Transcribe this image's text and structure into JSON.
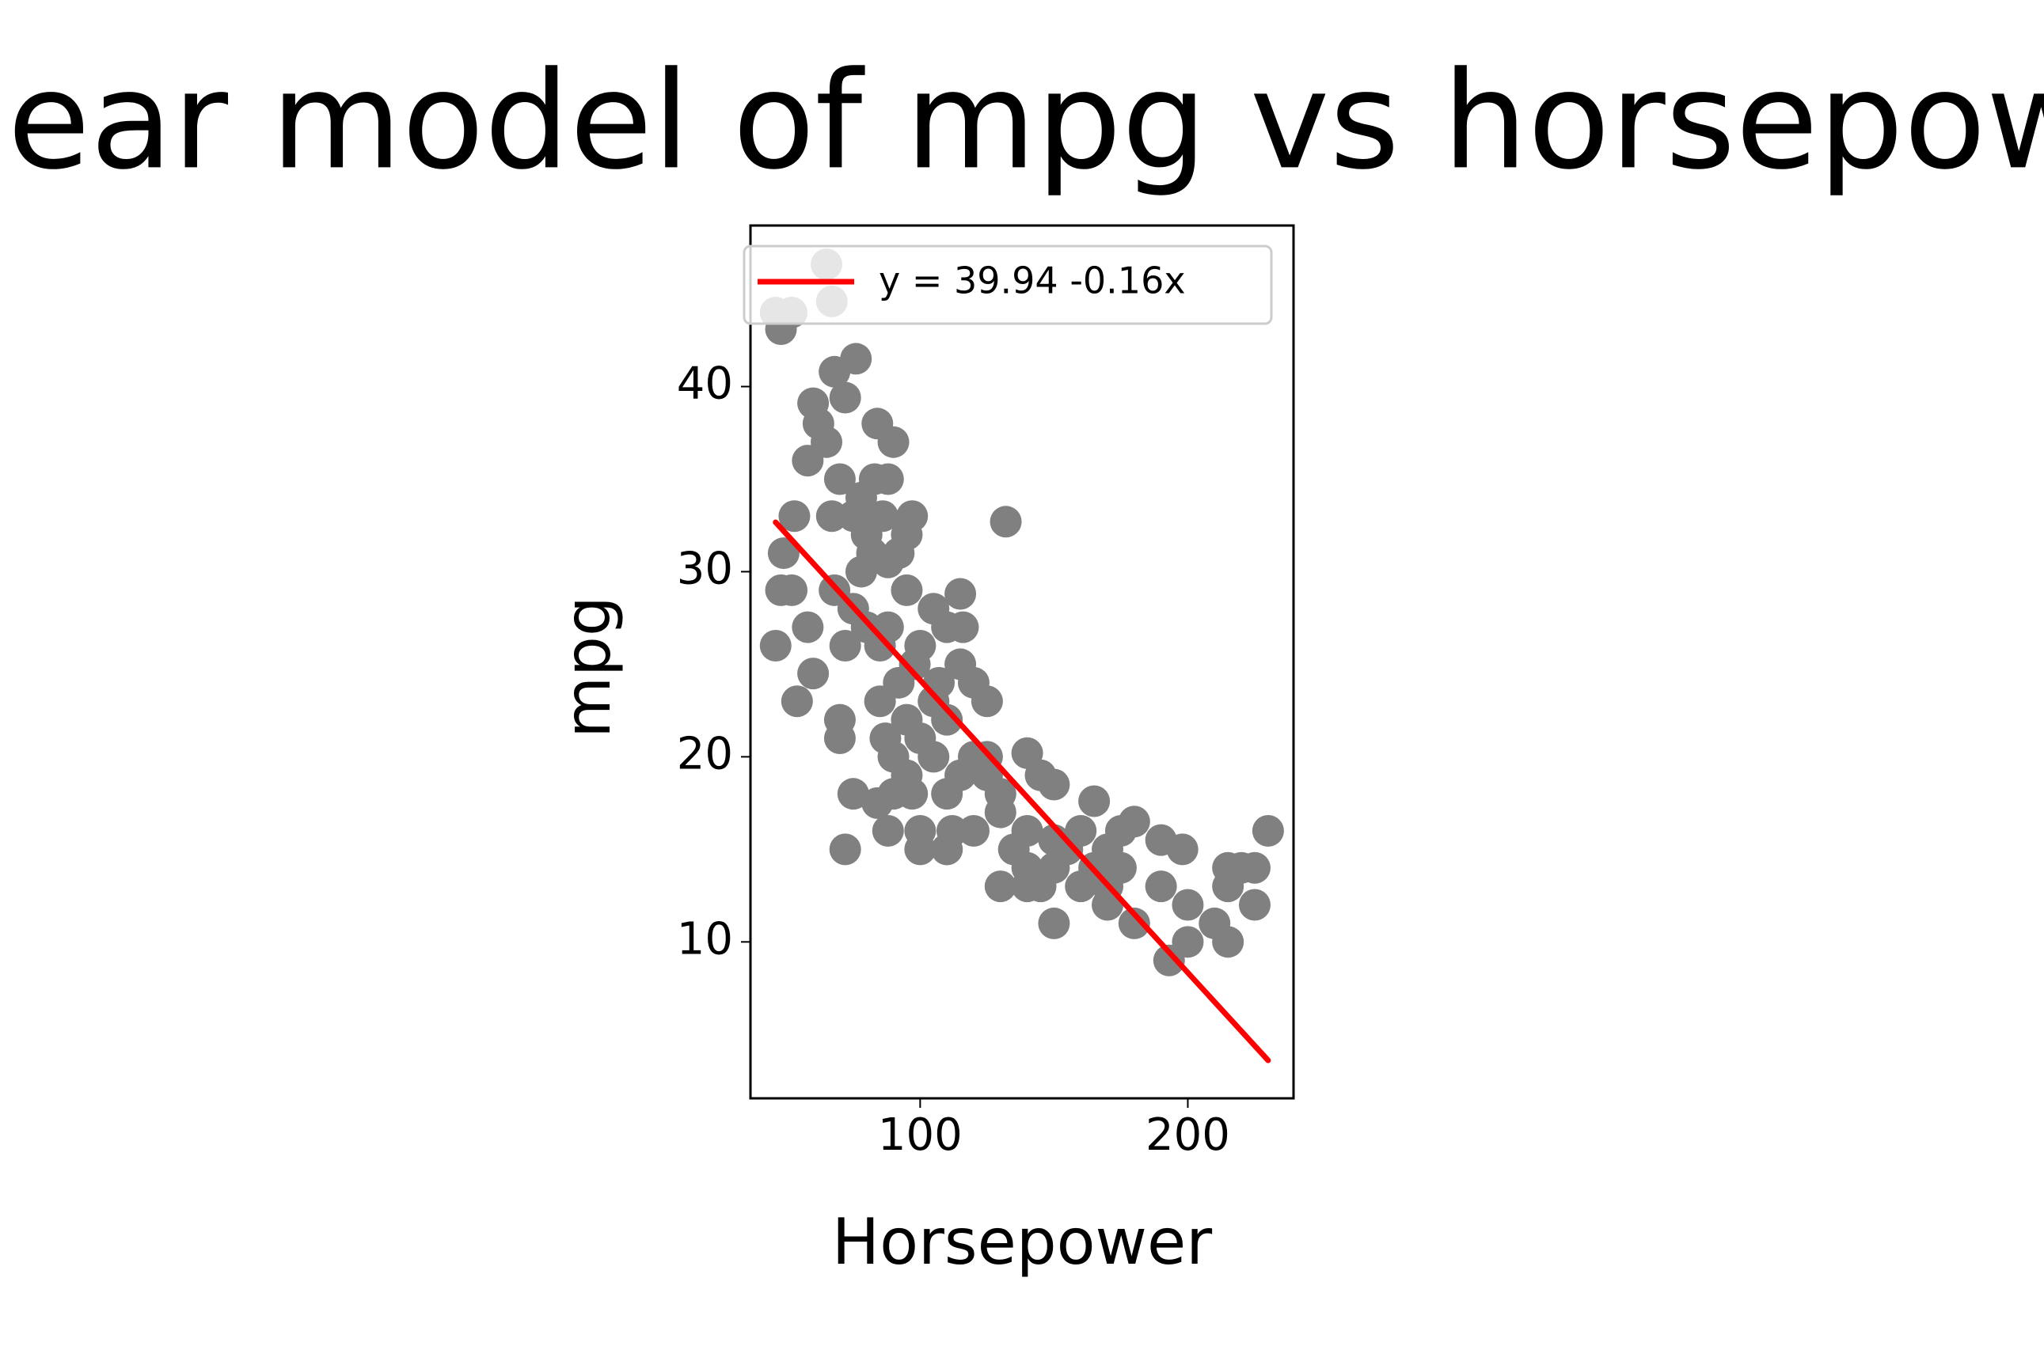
{
  "chart_data": {
    "type": "scatter",
    "title": "Linear model of mpg vs horsepower",
    "x_label": "Horsepower",
    "y_label": "mpg",
    "color": "#808080",
    "x": [
      46,
      48,
      46,
      52,
      65,
      67,
      48,
      52,
      53,
      49,
      54,
      58,
      60,
      58,
      62,
      60,
      68,
      72,
      76,
      65,
      70,
      75,
      84,
      90,
      95,
      97,
      88,
      80,
      78,
      75,
      72,
      70,
      70,
      75,
      84,
      72,
      100,
      110,
      100,
      90,
      95,
      100,
      105,
      115,
      116,
      115,
      120,
      125,
      110,
      105,
      110,
      120,
      115,
      125,
      130,
      135,
      130,
      140,
      140,
      145,
      150,
      140,
      150,
      145,
      150,
      155,
      160,
      165,
      170,
      175,
      170,
      175,
      180,
      180,
      190,
      198,
      190,
      193,
      200,
      200,
      210,
      215,
      215,
      220,
      225,
      225,
      215,
      230,
      132,
      88,
      92,
      95,
      98,
      85,
      82,
      78,
      67,
      68,
      87,
      90,
      105,
      112,
      88,
      97,
      100,
      107,
      110,
      120,
      125,
      130,
      110,
      140,
      150,
      160,
      165,
      170,
      85,
      95,
      80,
      83,
      86,
      92,
      88
    ],
    "y": [
      26,
      43.1,
      44,
      44,
      46.6,
      44.6,
      29,
      29,
      33,
      31,
      23,
      27,
      24.5,
      36,
      38,
      39.1,
      40.8,
      39.4,
      41.5,
      37,
      35,
      33,
      38,
      37,
      32,
      33,
      35,
      32,
      30,
      28,
      26,
      22,
      21,
      18,
      17.5,
      15,
      15,
      15,
      16,
      20,
      22,
      26,
      28,
      28.8,
      27,
      25,
      24,
      23,
      22,
      20,
      18,
      16,
      19,
      20,
      17,
      15,
      13,
      13,
      20.2,
      19,
      18.5,
      16,
      14,
      13,
      11,
      15,
      13,
      17.6,
      15,
      14,
      12,
      16,
      16.5,
      11,
      15.5,
      15,
      13,
      9,
      12,
      10,
      11,
      10,
      14,
      14,
      14,
      12,
      13,
      16,
      32.7,
      27,
      24,
      19,
      25,
      23,
      31,
      34,
      33,
      29,
      21,
      18,
      23,
      16,
      16,
      18,
      21,
      24,
      27,
      20,
      19,
      18,
      15,
      14,
      15.5,
      16,
      14,
      13,
      26,
      29,
      27,
      35,
      33,
      31,
      30.5
    ],
    "fit": {
      "name": "y = 39.94 -0.16x",
      "color": "#ff0000",
      "x": [
        46,
        230
      ],
      "y": [
        32.67,
        3.6
      ]
    },
    "xlim": [
      36.6,
      239.5
    ],
    "ylim": [
      1.55,
      48.7
    ],
    "xticks": [
      100,
      200
    ],
    "yticks": [
      10,
      20,
      30,
      40
    ],
    "grid": false,
    "legend": "upper left"
  }
}
